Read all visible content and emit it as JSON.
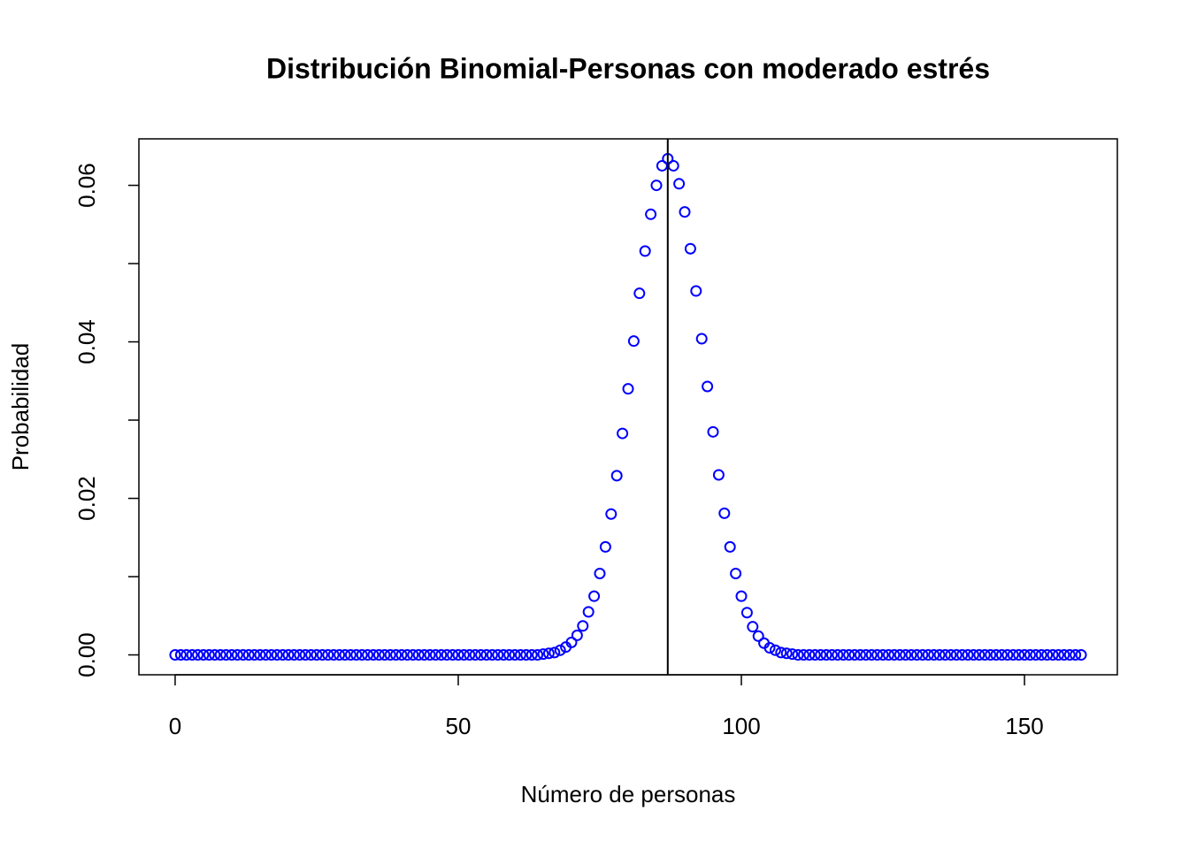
{
  "chart_data": {
    "type": "scatter",
    "title": "Distribución Binomial-Personas con moderado estrés",
    "x_label": "Número de personas",
    "y_label": "Probabilidad",
    "color": "#0000ff",
    "vline": 87,
    "x": [
      0,
      1,
      2,
      3,
      4,
      5,
      6,
      7,
      8,
      9,
      10,
      11,
      12,
      13,
      14,
      15,
      16,
      17,
      18,
      19,
      20,
      21,
      22,
      23,
      24,
      25,
      26,
      27,
      28,
      29,
      30,
      31,
      32,
      33,
      34,
      35,
      36,
      37,
      38,
      39,
      40,
      41,
      42,
      43,
      44,
      45,
      46,
      47,
      48,
      49,
      50,
      51,
      52,
      53,
      54,
      55,
      56,
      57,
      58,
      59,
      60,
      61,
      62,
      63,
      64,
      65,
      66,
      67,
      68,
      69,
      70,
      71,
      72,
      73,
      74,
      75,
      76,
      77,
      78,
      79,
      80,
      81,
      82,
      83,
      84,
      85,
      86,
      87,
      88,
      89,
      90,
      91,
      92,
      93,
      94,
      95,
      96,
      97,
      98,
      99,
      100,
      101,
      102,
      103,
      104,
      105,
      106,
      107,
      108,
      109,
      110,
      111,
      112,
      113,
      114,
      115,
      116,
      117,
      118,
      119,
      120,
      121,
      122,
      123,
      124,
      125,
      126,
      127,
      128,
      129,
      130,
      131,
      132,
      133,
      134,
      135,
      136,
      137,
      138,
      139,
      140,
      141,
      142,
      143,
      144,
      145,
      146,
      147,
      148,
      149,
      150,
      151,
      152,
      153,
      154,
      155,
      156,
      157,
      158,
      159,
      160
    ],
    "values": [
      0,
      0,
      0,
      0,
      0,
      0,
      0,
      0,
      0,
      0,
      0,
      0,
      0,
      0,
      0,
      0,
      0,
      0,
      0,
      0,
      0,
      0,
      0,
      0,
      0,
      0,
      0,
      0,
      0,
      0,
      0,
      0,
      0,
      0,
      0,
      0,
      0,
      0,
      0,
      0,
      0,
      0,
      0,
      0,
      0,
      0,
      0,
      0,
      0,
      0,
      0,
      0,
      0,
      0,
      0,
      0,
      0,
      0,
      0,
      0,
      0,
      0,
      0,
      0,
      0,
      0.0001,
      0.0002,
      0.0003,
      0.0006,
      0.001,
      0.0016,
      0.0025,
      0.0037,
      0.0055,
      0.0075,
      0.0104,
      0.0138,
      0.018,
      0.0229,
      0.0283,
      0.034,
      0.0401,
      0.0462,
      0.0516,
      0.0563,
      0.06,
      0.0625,
      0.0634,
      0.0625,
      0.0602,
      0.0566,
      0.0519,
      0.0465,
      0.0404,
      0.0343,
      0.0285,
      0.023,
      0.0181,
      0.0138,
      0.0104,
      0.0075,
      0.0054,
      0.0036,
      0.0024,
      0.0015,
      0.0009,
      0.0006,
      0.0003,
      0.0002,
      0.0001,
      0,
      0,
      0,
      0,
      0,
      0,
      0,
      0,
      0,
      0,
      0,
      0,
      0,
      0,
      0,
      0,
      0,
      0,
      0,
      0,
      0,
      0,
      0,
      0,
      0,
      0,
      0,
      0,
      0,
      0,
      0,
      0,
      0,
      0,
      0,
      0,
      0,
      0,
      0,
      0,
      0,
      0,
      0,
      0,
      0,
      0,
      0,
      0,
      0,
      0,
      0
    ],
    "xlim": [
      -6.4,
      166.4
    ],
    "ylim": [
      -0.00254,
      0.06594
    ],
    "xticks": [
      0,
      50,
      100,
      150
    ],
    "yticks": [
      {
        "value": 0,
        "label": "0.00"
      },
      {
        "value": 0.01,
        "label": null
      },
      {
        "value": 0.02,
        "label": "0.02"
      },
      {
        "value": 0.03,
        "label": null
      },
      {
        "value": 0.04,
        "label": "0.04"
      },
      {
        "value": 0.05,
        "label": null
      },
      {
        "value": 0.06,
        "label": "0.06"
      }
    ]
  }
}
